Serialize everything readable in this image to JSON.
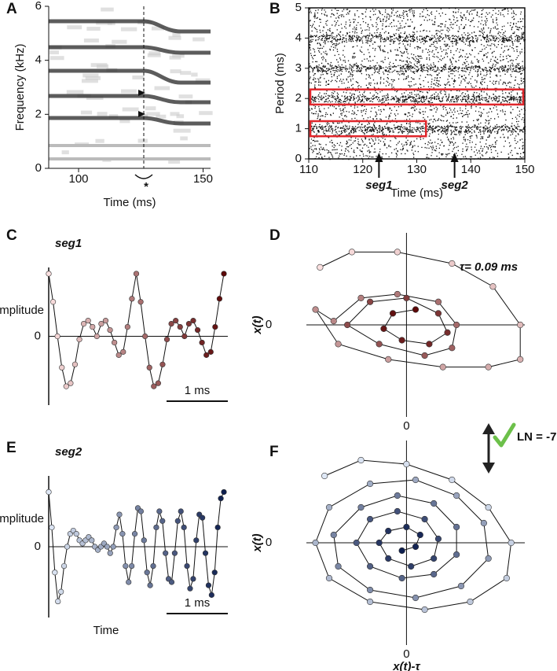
{
  "chart_data": [
    {
      "type": "spectrogram",
      "panel": "A",
      "ylabel": "Frequency (kHz)",
      "xlabel": "Time (ms)",
      "marker_label": "*",
      "xlim": [
        88,
        153
      ],
      "xticks": [
        100,
        150
      ],
      "ylim": [
        0,
        6
      ],
      "yticks": [
        0,
        2,
        4,
        6
      ]
    },
    {
      "type": "raster",
      "panel": "B",
      "ylabel": "Period (ms)",
      "xlabel": "Time (ms)",
      "xlim": [
        110,
        150
      ],
      "xticks": [
        110,
        120,
        130,
        140,
        150
      ],
      "ylim": [
        0,
        5
      ],
      "yticks": [
        0,
        1,
        2,
        3,
        4,
        5
      ],
      "region_color": "#e0262b",
      "regions": [
        {
          "xlim": [
            110,
            132
          ],
          "ylim": [
            0.75,
            1.25
          ]
        },
        {
          "xlim": [
            110,
            150
          ],
          "ylim": [
            1.8,
            2.3
          ]
        }
      ],
      "annotations": [
        {
          "text": "seg1",
          "x": 123
        },
        {
          "text": "seg2",
          "x": 137
        }
      ]
    },
    {
      "type": "line",
      "panel": "C",
      "title": "seg1",
      "ylabel": "Amplitude",
      "scalebar_label": "1 ms",
      "ylim": [
        -1.1,
        1.1
      ],
      "yticks": [
        0
      ],
      "color_start": "#fbe0e0",
      "color_end": "#5c0808",
      "values": [
        1.0,
        0.55,
        0.0,
        -0.5,
        -0.8,
        -0.75,
        -0.45,
        -0.05,
        0.2,
        0.25,
        0.15,
        0.0,
        0.2,
        0.25,
        0.1,
        -0.1,
        -0.3,
        -0.25,
        0.15,
        0.6,
        1.0,
        0.55,
        0.0,
        -0.5,
        -0.8,
        -0.75,
        -0.45,
        -0.05,
        0.2,
        0.25,
        0.15,
        0.0,
        0.2,
        0.25,
        0.1,
        -0.1,
        -0.3,
        -0.25,
        0.15,
        0.6,
        1.0
      ]
    },
    {
      "type": "phase",
      "panel": "D",
      "ylabel": "x(t)",
      "annotation": "τ= 0.09 ms",
      "xlim": [
        -1.1,
        1.3
      ],
      "xticks": [
        0
      ],
      "ylim": [
        -1.2,
        1.2
      ],
      "yticks": [
        0
      ],
      "color_start": "#fbe0e0",
      "color_end": "#5c0808",
      "x": [
        -0.95,
        -0.6,
        -0.1,
        0.5,
        0.95,
        1.25,
        1.25,
        0.9,
        0.4,
        -0.2,
        -0.75,
        -1.0,
        -0.8,
        -0.5,
        -0.1,
        0.35,
        0.55,
        0.5,
        0.2,
        -0.3,
        -0.65,
        -0.4,
        0.0,
        0.35,
        0.45,
        0.25,
        -0.05,
        -0.25,
        -0.15,
        0.1
      ],
      "y": [
        0.75,
        0.95,
        0.95,
        0.8,
        0.5,
        0.0,
        -0.45,
        -0.55,
        -0.55,
        -0.45,
        -0.25,
        0.2,
        0.05,
        0.35,
        0.4,
        0.3,
        0.0,
        -0.3,
        -0.4,
        -0.25,
        0.0,
        0.3,
        0.35,
        0.15,
        -0.1,
        -0.25,
        -0.2,
        -0.05,
        0.15,
        0.2
      ]
    },
    {
      "type": "line",
      "panel": "E",
      "title": "seg2",
      "ylabel": "Amplitude",
      "xlabel": "Time",
      "scalebar_label": "1 ms",
      "ylim": [
        -1.1,
        1.1
      ],
      "yticks": [
        0
      ],
      "color_start": "#dfe8f6",
      "color_end": "#0e1f4f",
      "values": [
        0.85,
        0.3,
        -0.4,
        -0.85,
        -0.7,
        -0.3,
        0.0,
        0.2,
        0.25,
        0.2,
        0.1,
        0.05,
        0.1,
        0.15,
        0.1,
        0.0,
        -0.05,
        0.0,
        0.05,
        0.0,
        -0.1,
        0.0,
        0.3,
        0.5,
        0.2,
        -0.3,
        -0.55,
        -0.3,
        0.2,
        0.6,
        0.55,
        0.1,
        -0.4,
        -0.6,
        -0.3,
        0.3,
        0.55,
        0.4,
        -0.1,
        -0.5,
        -0.55,
        -0.1,
        0.4,
        0.55,
        0.3,
        -0.3,
        -0.65,
        -0.5,
        0.1,
        0.5,
        0.45,
        -0.1,
        -0.6,
        -0.75,
        -0.4,
        0.3,
        0.75,
        0.85
      ]
    },
    {
      "type": "phase",
      "panel": "F",
      "ylabel": "x(t)",
      "xlabel": "x(t)-τ",
      "xlim": [
        -1.1,
        1.3
      ],
      "xticks": [
        0
      ],
      "ylim": [
        -1.3,
        1.3
      ],
      "yticks": [
        0
      ],
      "color_start": "#dfe8f6",
      "color_end": "#0e1f4f",
      "x": [
        -0.9,
        -0.5,
        0.0,
        0.5,
        0.9,
        1.15,
        1.1,
        0.7,
        0.2,
        -0.4,
        -0.85,
        -1.0,
        -0.85,
        -0.4,
        0.1,
        0.55,
        0.85,
        0.9,
        0.6,
        0.1,
        -0.4,
        -0.75,
        -0.8,
        -0.5,
        -0.1,
        0.3,
        0.55,
        0.55,
        0.3,
        -0.05,
        -0.4,
        -0.55,
        -0.4,
        -0.1,
        0.2,
        0.35,
        0.3,
        0.05,
        -0.2,
        -0.3,
        -0.2,
        0.0,
        0.15,
        0.1,
        -0.05
      ],
      "y": [
        0.85,
        1.05,
        1.0,
        0.8,
        0.45,
        0.0,
        -0.45,
        -0.75,
        -0.85,
        -0.75,
        -0.45,
        0.0,
        0.45,
        0.75,
        0.8,
        0.6,
        0.25,
        -0.2,
        -0.55,
        -0.7,
        -0.6,
        -0.3,
        0.1,
        0.45,
        0.6,
        0.5,
        0.2,
        -0.15,
        -0.4,
        -0.45,
        -0.3,
        0.0,
        0.3,
        0.4,
        0.3,
        0.05,
        -0.2,
        -0.3,
        -0.2,
        0.0,
        0.15,
        0.2,
        0.1,
        -0.05,
        -0.1
      ]
    }
  ],
  "comparison": {
    "label": "LN = -7"
  }
}
